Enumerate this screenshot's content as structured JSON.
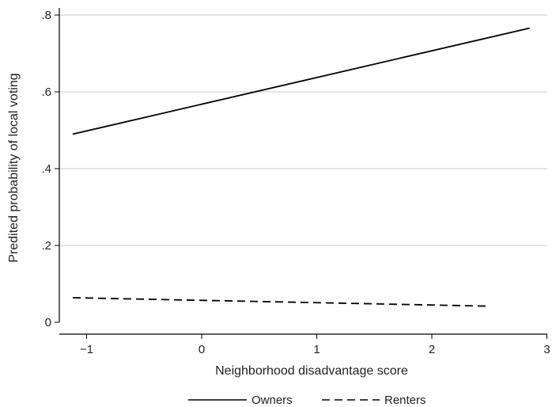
{
  "chart_data": {
    "type": "line",
    "title": "",
    "xlabel": "Neighborhood disadvantage score",
    "ylabel": "Predited probability of local voting",
    "xlim": [
      -1.2,
      3.0
    ],
    "ylim": [
      0,
      0.8
    ],
    "xticks": [
      -1,
      0,
      1,
      2,
      3
    ],
    "xtick_labels": [
      "−1",
      "0",
      "1",
      "2",
      "3"
    ],
    "yticks": [
      0,
      0.2,
      0.4,
      0.6,
      0.8
    ],
    "ytick_labels": [
      "0",
      ".2",
      ".4",
      ".6",
      ".8"
    ],
    "grid": "horizontal",
    "legend_position": "bottom",
    "series": [
      {
        "name": "Owners",
        "style": "solid",
        "color": "#000000",
        "x": [
          -1.12,
          2.85
        ],
        "y": [
          0.49,
          0.766
        ]
      },
      {
        "name": "Renters",
        "style": "dashed",
        "color": "#000000",
        "x": [
          -1.12,
          2.48
        ],
        "y": [
          0.064,
          0.042
        ]
      }
    ]
  }
}
